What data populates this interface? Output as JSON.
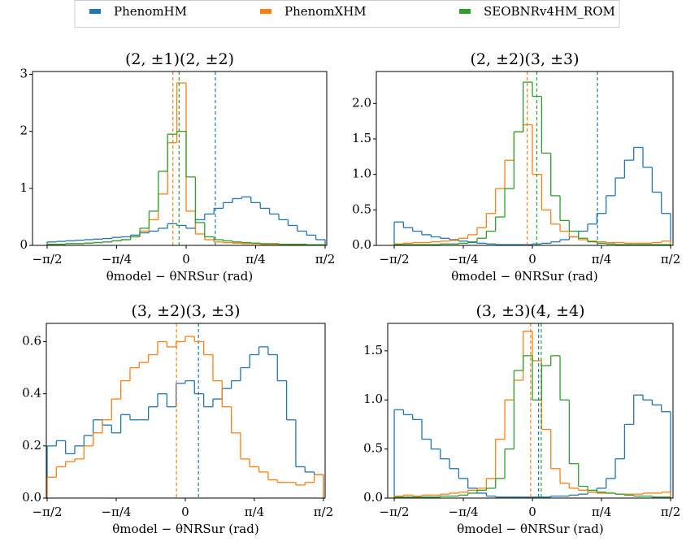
{
  "chart_data": [
    {
      "type": "histogram",
      "title": "(2, ±1)(2, ±2)",
      "xlabel": "θmodel − θNRSur (rad)",
      "bins": [
        -1.5708,
        -1.4661,
        -1.3614,
        -1.2566,
        -1.1519,
        -1.0472,
        -0.9425,
        -0.8378,
        -0.733,
        -0.6283,
        -0.5236,
        -0.4189,
        -0.3142,
        -0.2094,
        -0.1047,
        0,
        0.1047,
        0.2094,
        0.3142,
        0.4189,
        0.5236,
        0.6283,
        0.733,
        0.8378,
        0.9425,
        1.0472,
        1.1519,
        1.2566,
        1.3614,
        1.4661,
        1.5708
      ],
      "xlim": [
        -1.736,
        1.589
      ],
      "ylim": [
        0,
        3.05
      ],
      "xticks": [
        {
          "value": -1.5708,
          "label": "−π/2"
        },
        {
          "value": -0.7854,
          "label": "−π/4"
        },
        0,
        {
          "value": 0.7854,
          "label": "π/4"
        },
        {
          "value": 1.5708,
          "label": "π/2"
        }
      ],
      "yticks": [
        0,
        1,
        2,
        3
      ],
      "series": [
        {
          "name": "PhenomHM",
          "color": "#1f77b4",
          "mean": 0.33,
          "values": [
            0.06,
            0.07,
            0.08,
            0.09,
            0.1,
            0.11,
            0.12,
            0.14,
            0.15,
            0.18,
            0.22,
            0.25,
            0.3,
            0.38,
            0.35,
            0.3,
            0.45,
            0.55,
            0.65,
            0.75,
            0.82,
            0.85,
            0.75,
            0.65,
            0.55,
            0.45,
            0.35,
            0.25,
            0.18,
            0.1
          ]
        },
        {
          "name": "PhenomXHM",
          "color": "#ff7f0e",
          "mean": -0.15,
          "values": [
            0.02,
            0.02,
            0.03,
            0.03,
            0.04,
            0.05,
            0.06,
            0.08,
            0.1,
            0.15,
            0.25,
            0.45,
            0.9,
            1.8,
            2.85,
            0.6,
            0.2,
            0.1,
            0.06,
            0.05,
            0.04,
            0.03,
            0.03,
            0.02,
            0.02,
            0.02,
            0.01,
            0.01,
            0.01,
            0.01
          ]
        },
        {
          "name": "SEOBNRv4HM_ROM",
          "color": "#2ca02c",
          "mean": -0.08,
          "values": [
            0.02,
            0.02,
            0.03,
            0.03,
            0.04,
            0.05,
            0.06,
            0.08,
            0.1,
            0.15,
            0.3,
            0.6,
            1.3,
            1.95,
            2.0,
            1.2,
            0.4,
            0.15,
            0.1,
            0.08,
            0.06,
            0.05,
            0.04,
            0.03,
            0.03,
            0.02,
            0.02,
            0.02,
            0.01,
            0.01
          ]
        }
      ]
    },
    {
      "type": "histogram",
      "title": "(2, ±2)(3, ±3)",
      "xlabel": "θmodel − θNRSur (rad)",
      "bins": [
        -1.5708,
        -1.4661,
        -1.3614,
        -1.2566,
        -1.1519,
        -1.0472,
        -0.9425,
        -0.8378,
        -0.733,
        -0.6283,
        -0.5236,
        -0.4189,
        -0.3142,
        -0.2094,
        -0.1047,
        0,
        0.1047,
        0.2094,
        0.3142,
        0.4189,
        0.5236,
        0.6283,
        0.733,
        0.8378,
        0.9425,
        1.0472,
        1.1519,
        1.2566,
        1.3614,
        1.4661,
        1.5708
      ],
      "xlim": [
        -1.774,
        1.598
      ],
      "ylim": [
        0,
        2.45
      ],
      "xticks": [
        {
          "value": -1.5708,
          "label": "−π/2"
        },
        {
          "value": -0.7854,
          "label": "−π/4"
        },
        0,
        {
          "value": 0.7854,
          "label": "π/4"
        },
        {
          "value": 1.5708,
          "label": "π/2"
        }
      ],
      "yticks": [
        {
          "value": 0,
          "label": "0.0"
        },
        0.5,
        {
          "value": 1,
          "label": "1.0"
        },
        1.5,
        {
          "value": 2,
          "label": "2.0"
        }
      ],
      "series": [
        {
          "name": "PhenomHM",
          "color": "#1f77b4",
          "mean": 0.74,
          "values": [
            0.33,
            0.25,
            0.2,
            0.15,
            0.12,
            0.1,
            0.08,
            0.06,
            0.04,
            0.03,
            0.02,
            0.01,
            0.01,
            0.01,
            0.01,
            0.02,
            0.03,
            0.05,
            0.08,
            0.12,
            0.2,
            0.3,
            0.45,
            0.7,
            0.95,
            1.2,
            1.38,
            1.1,
            0.75,
            0.45
          ]
        },
        {
          "name": "PhenomXHM",
          "color": "#ff7f0e",
          "mean": -0.06,
          "values": [
            0.02,
            0.03,
            0.04,
            0.04,
            0.05,
            0.06,
            0.07,
            0.1,
            0.15,
            0.25,
            0.45,
            0.8,
            1.2,
            1.6,
            1.7,
            1.0,
            0.5,
            0.3,
            0.2,
            0.12,
            0.08,
            0.06,
            0.05,
            0.04,
            0.04,
            0.03,
            0.03,
            0.03,
            0.04,
            0.06
          ]
        },
        {
          "name": "SEOBNRv4HM_ROM",
          "color": "#2ca02c",
          "mean": 0.05,
          "values": [
            0.01,
            0.01,
            0.01,
            0.01,
            0.01,
            0.02,
            0.02,
            0.03,
            0.05,
            0.1,
            0.2,
            0.4,
            0.8,
            1.6,
            2.3,
            2.1,
            1.3,
            0.7,
            0.35,
            0.2,
            0.1,
            0.05,
            0.03,
            0.02,
            0.01,
            0.01,
            0.01,
            0.01,
            0.01,
            0.01
          ]
        }
      ]
    },
    {
      "type": "histogram",
      "title": "(3, ±2)(3, ±3)",
      "xlabel": "θmodel − θNRSur (rad)",
      "bins": [
        -1.5708,
        -1.4661,
        -1.3614,
        -1.2566,
        -1.1519,
        -1.0472,
        -0.9425,
        -0.8378,
        -0.733,
        -0.6283,
        -0.5236,
        -0.4189,
        -0.3142,
        -0.2094,
        -0.1047,
        0,
        0.1047,
        0.2094,
        0.3142,
        0.4189,
        0.5236,
        0.6283,
        0.733,
        0.8378,
        0.9425,
        1.0472,
        1.1519,
        1.2566,
        1.3614,
        1.4661,
        1.5708
      ],
      "xlim": [
        -1.58,
        1.59
      ],
      "ylim": [
        0,
        0.67
      ],
      "xticks": [
        {
          "value": -1.5708,
          "label": "−π/2"
        },
        {
          "value": -0.7854,
          "label": "−π/4"
        },
        0,
        {
          "value": 0.7854,
          "label": "π/4"
        },
        {
          "value": 1.5708,
          "label": "π/2"
        }
      ],
      "yticks": [
        {
          "value": 0,
          "label": "0.0"
        },
        0.2,
        0.4,
        0.6
      ],
      "series": [
        {
          "name": "PhenomHM",
          "color": "#1f77b4",
          "mean": 0.15,
          "values": [
            0.2,
            0.22,
            0.17,
            0.2,
            0.24,
            0.3,
            0.28,
            0.25,
            0.32,
            0.3,
            0.3,
            0.35,
            0.4,
            0.35,
            0.44,
            0.45,
            0.4,
            0.35,
            0.38,
            0.42,
            0.45,
            0.5,
            0.55,
            0.58,
            0.55,
            0.45,
            0.3,
            0.12,
            0.1,
            0.09
          ]
        },
        {
          "name": "PhenomXHM",
          "color": "#ff7f0e",
          "mean": -0.1,
          "values": [
            0.08,
            0.12,
            0.14,
            0.15,
            0.2,
            0.25,
            0.3,
            0.38,
            0.45,
            0.5,
            0.52,
            0.55,
            0.6,
            0.58,
            0.6,
            0.62,
            0.6,
            0.55,
            0.45,
            0.35,
            0.25,
            0.15,
            0.12,
            0.1,
            0.07,
            0.06,
            0.06,
            0.05,
            0.06,
            0.09
          ]
        }
      ]
    },
    {
      "type": "histogram",
      "title": "(3, ±3)(4, ±4)",
      "xlabel": "θmodel − θNRSur (rad)",
      "bins": [
        -1.5708,
        -1.4661,
        -1.3614,
        -1.2566,
        -1.1519,
        -1.0472,
        -0.9425,
        -0.8378,
        -0.733,
        -0.6283,
        -0.5236,
        -0.4189,
        -0.3142,
        -0.2094,
        -0.1047,
        0,
        0.1047,
        0.2094,
        0.3142,
        0.4189,
        0.5236,
        0.6283,
        0.733,
        0.8378,
        0.9425,
        1.0472,
        1.1519,
        1.2566,
        1.3614,
        1.4661,
        1.5708
      ],
      "xlim": [
        -1.645,
        1.598
      ],
      "ylim": [
        0,
        1.78
      ],
      "xticks": [
        {
          "value": -1.5708,
          "label": "−π/2"
        },
        {
          "value": -0.7854,
          "label": "−π/4"
        },
        0,
        {
          "value": 0.7854,
          "label": "π/4"
        },
        {
          "value": 1.5708,
          "label": "π/2"
        }
      ],
      "yticks": [
        {
          "value": 0,
          "label": "0.0"
        },
        0.5,
        {
          "value": 1,
          "label": "1.0"
        },
        1.5
      ],
      "series": [
        {
          "name": "PhenomHM",
          "color": "#1f77b4",
          "mean": 0.07,
          "values": [
            0.9,
            0.85,
            0.8,
            0.6,
            0.5,
            0.4,
            0.3,
            0.2,
            0.1,
            0.05,
            0.02,
            0.01,
            0.01,
            0.01,
            0.01,
            0.01,
            0.01,
            0.02,
            0.02,
            0.03,
            0.04,
            0.06,
            0.1,
            0.2,
            0.4,
            0.75,
            1.05,
            1.0,
            0.95,
            0.88
          ]
        },
        {
          "name": "PhenomXHM",
          "color": "#ff7f0e",
          "mean": -0.02,
          "values": [
            0.02,
            0.03,
            0.02,
            0.03,
            0.03,
            0.04,
            0.05,
            0.06,
            0.08,
            0.1,
            0.2,
            0.6,
            1.0,
            1.2,
            1.7,
            1.4,
            0.7,
            0.3,
            0.15,
            0.1,
            0.08,
            0.06,
            0.05,
            0.05,
            0.04,
            0.04,
            0.04,
            0.05,
            0.05,
            0.06
          ]
        },
        {
          "name": "SEOBNRv4HM_ROM",
          "color": "#2ca02c",
          "mean": 0.1,
          "values": [
            0.01,
            0.01,
            0.01,
            0.01,
            0.01,
            0.02,
            0.02,
            0.03,
            0.05,
            0.08,
            0.1,
            0.2,
            0.5,
            1.3,
            1.45,
            1.0,
            1.35,
            1.45,
            1.0,
            0.35,
            0.12,
            0.08,
            0.06,
            0.05,
            0.04,
            0.03,
            0.02,
            0.02,
            0.01,
            0.01
          ]
        }
      ]
    }
  ]
}
